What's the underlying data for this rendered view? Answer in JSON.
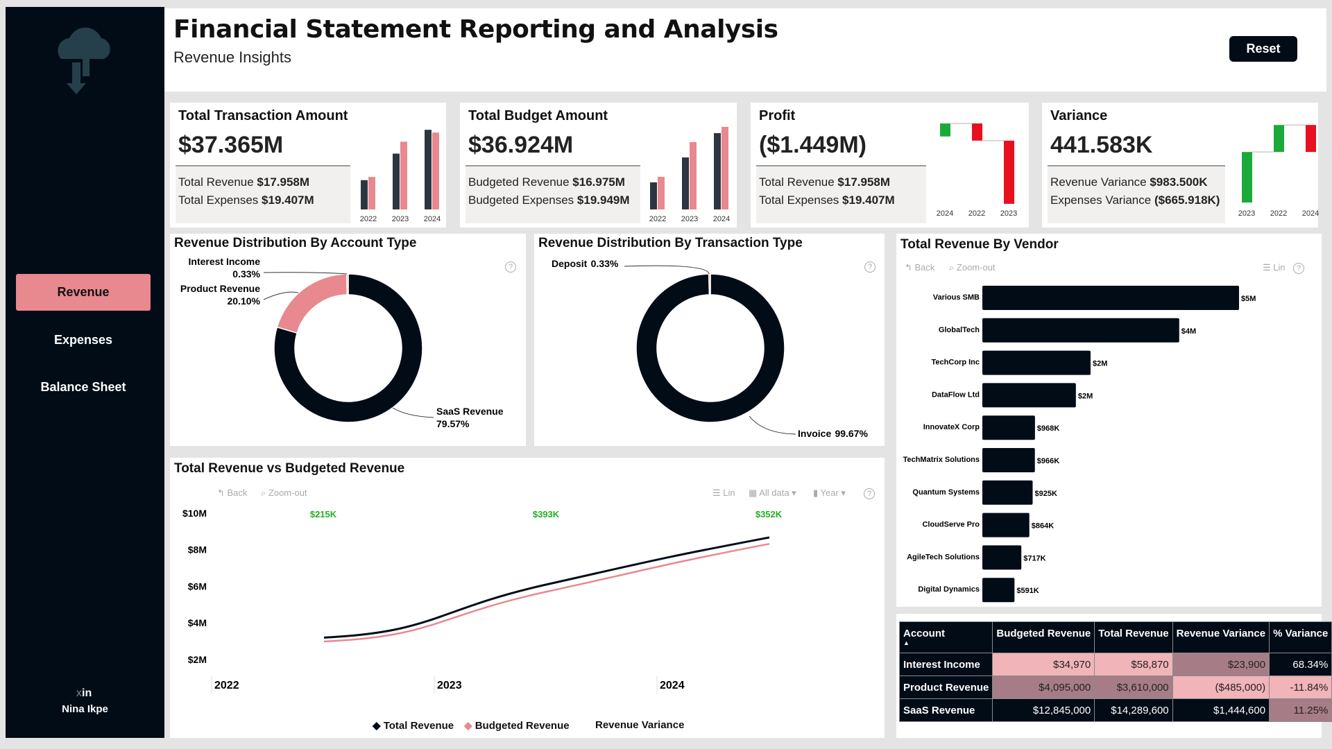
{
  "header": {
    "title": "Financial Statement Reporting and Analysis",
    "subtitle": "Revenue Insights",
    "reset_label": "Reset"
  },
  "sidebar": {
    "logo_icon": "cloud-upload-download-icon",
    "items": [
      {
        "label": "Revenue",
        "active": true
      },
      {
        "label": "Expenses"
      },
      {
        "label": "Balance Sheet"
      }
    ],
    "social": {
      "x": "x",
      "in": "in"
    },
    "author": "Nina Ikpe"
  },
  "colors": {
    "dark": "#020c17",
    "pink": "#e8888f",
    "green": "#1aaa3a",
    "red": "#e8101f",
    "variance_label": "#22b022"
  },
  "kpis": [
    {
      "title": "Total Transaction Amount",
      "value": "$37.365M",
      "line1_label": "Total Revenue",
      "line1_value": "$17.958M",
      "line2_label": "Total Expenses",
      "line2_value": "$19.407M"
    },
    {
      "title": "Total Budget Amount",
      "value": "$36.924M",
      "line1_label": "Budgeted Revenue",
      "line1_value": "$16.975M",
      "line2_label": "Budgeted Expenses",
      "line2_value": "$19.949M"
    },
    {
      "title": "Profit",
      "value": "($1.449M)",
      "line1_label": "Total Revenue",
      "line1_value": "$17.958M",
      "line2_label": "Total Expenses",
      "line2_value": "$19.407M"
    },
    {
      "title": "Variance",
      "value": "441.583K",
      "line1_label": "Revenue Variance",
      "line1_value": "$983.500K",
      "line2_label": "Expenses Variance",
      "line2_value": "($665.918K)"
    }
  ],
  "chart_data": [
    {
      "type": "bar",
      "id": "kpi-transaction",
      "categories": [
        "2022",
        "2023",
        "2024"
      ],
      "series": [
        {
          "values": [
            3.2,
            6.1,
            8.7
          ]
        },
        {
          "values": [
            3.55,
            7.4,
            8.4
          ]
        }
      ],
      "unit": "$M"
    },
    {
      "type": "bar",
      "id": "kpi-budget",
      "categories": [
        "2022",
        "2023",
        "2024"
      ],
      "series": [
        {
          "values": [
            2.96,
            5.68,
            8.34
          ]
        },
        {
          "values": [
            3.56,
            7.36,
            9.02
          ]
        }
      ],
      "unit": "$M"
    },
    {
      "type": "waterfall",
      "id": "kpi-profit",
      "categories": [
        "2024",
        "2022",
        "2023"
      ],
      "values": [
        0.28,
        -0.37,
        -1.36
      ],
      "unit": "$M"
    },
    {
      "type": "waterfall",
      "id": "kpi-variance",
      "categories": [
        "2023",
        "2022",
        "2024"
      ],
      "values": [
        441.6,
        236,
        -236
      ],
      "unit": "$K"
    },
    {
      "type": "pie",
      "id": "account-type",
      "title": "Revenue Distribution By Account Type",
      "donut": true,
      "slices": [
        {
          "label": "SaaS Revenue",
          "pct_label": "79.57%",
          "value": 79.57,
          "color": "#020c17"
        },
        {
          "label": "Product Revenue",
          "pct_label": "20.10%",
          "value": 20.1,
          "color": "#e8888f"
        },
        {
          "label": "Interest Income",
          "pct_label": "0.33%",
          "value": 0.33,
          "color": "#e8888f"
        }
      ]
    },
    {
      "type": "pie",
      "id": "transaction-type",
      "title": "Revenue Distribution By Transaction Type",
      "donut": true,
      "slices": [
        {
          "label": "Invoice",
          "pct_label": "99.67%",
          "value": 99.67,
          "color": "#020c17"
        },
        {
          "label": "Deposit",
          "pct_label": "0.33%",
          "value": 0.33,
          "color": "#e8888f"
        }
      ]
    },
    {
      "type": "bar",
      "id": "vendor",
      "orientation": "horizontal",
      "title": "Total Revenue By Vendor",
      "categories": [
        "Various SMB",
        "GlobalTech",
        "TechCorp Inc",
        "DataFlow Ltd",
        "InnovateX Corp",
        "TechMatrix Solutions",
        "Quantum Systems",
        "CloudServe Pro",
        "AgileTech Solutions",
        "Digital Dynamics"
      ],
      "values": [
        4.72,
        3.62,
        1.99,
        1.72,
        0.968,
        0.966,
        0.925,
        0.864,
        0.717,
        0.591
      ],
      "labels": [
        "$5M",
        "$4M",
        "$2M",
        "$2M",
        "$968K",
        "$966K",
        "$925K",
        "$864K",
        "$717K",
        "$591K"
      ],
      "unit": "$M"
    },
    {
      "type": "line",
      "id": "revenue-vs-budget",
      "title": "Total Revenue vs Budgeted Revenue",
      "categories": [
        "2022",
        "2023",
        "2024"
      ],
      "yticks": [
        "$2M",
        "$4M",
        "$6M",
        "$8M",
        "$10M"
      ],
      "ylim": [
        2,
        10
      ],
      "series": [
        {
          "name": "Total Revenue",
          "values": [
            3.2,
            6.1,
            8.67
          ],
          "color": "#020c17"
        },
        {
          "name": "Budgeted Revenue",
          "values": [
            2.985,
            5.707,
            8.318
          ],
          "color": "#e8888f"
        }
      ],
      "variance": {
        "name": "Revenue Variance",
        "labels": [
          "$215K",
          "$393K",
          "$352K"
        ]
      }
    }
  ],
  "toolbar": {
    "back": "Back",
    "zoom_out": "Zoom-out",
    "lin": "Lin",
    "all_data": "All data",
    "year": "Year",
    "help": "?"
  },
  "table": {
    "headers": [
      "Account",
      "Budgeted Revenue",
      "Total Revenue",
      "Revenue Variance",
      "% Variance"
    ],
    "rows": [
      {
        "cells": [
          "Interest Income",
          "$34,970",
          "$58,870",
          "$23,900",
          "68.34%"
        ],
        "bg": [
          "#020c17",
          "#f0b4b9",
          "#f0b4b9",
          "#a67d86",
          "#020c17"
        ]
      },
      {
        "cells": [
          "Product Revenue",
          "$4,095,000",
          "$3,610,000",
          "($485,000)",
          "-11.84%"
        ],
        "bg": [
          "#020c17",
          "#a67d86",
          "#a67d86",
          "#f0b4b9",
          "#f0b4b9"
        ]
      },
      {
        "cells": [
          "SaaS Revenue",
          "$12,845,000",
          "$14,289,600",
          "$1,444,600",
          "11.25%"
        ],
        "bg": [
          "#020c17",
          "#020c17",
          "#020c17",
          "#020c17",
          "#a67d86"
        ]
      }
    ]
  }
}
